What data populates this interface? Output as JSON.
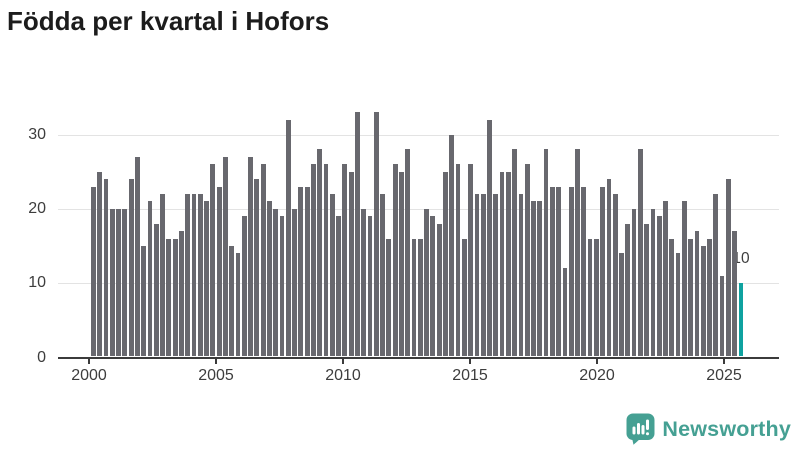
{
  "title": "Födda per kvartal i Hofors",
  "chart_data": {
    "type": "bar",
    "title": "Födda per kvartal i Hofors",
    "x_start": "2000-Q1",
    "frequency": "quarterly",
    "values": [
      23,
      25,
      24,
      20,
      20,
      20,
      24,
      27,
      15,
      21,
      18,
      22,
      16,
      16,
      17,
      22,
      22,
      22,
      21,
      26,
      23,
      27,
      15,
      14,
      19,
      27,
      24,
      26,
      21,
      20,
      19,
      32,
      20,
      23,
      23,
      26,
      28,
      26,
      22,
      19,
      26,
      25,
      33,
      20,
      19,
      33,
      22,
      16,
      26,
      25,
      28,
      16,
      16,
      20,
      19,
      18,
      25,
      30,
      26,
      16,
      26,
      22,
      22,
      32,
      22,
      25,
      25,
      28,
      22,
      26,
      21,
      21,
      28,
      23,
      23,
      12,
      23,
      28,
      23,
      16,
      16,
      23,
      24,
      22,
      14,
      18,
      20,
      28,
      18,
      20,
      19,
      21,
      16,
      14,
      21,
      16,
      17,
      15,
      16,
      22,
      11,
      24,
      17,
      10
    ],
    "highlight": {
      "index": 103,
      "value": 10,
      "label": "10"
    },
    "x_tick_labels": [
      "2000",
      "2005",
      "2010",
      "2015",
      "2020",
      "2025"
    ],
    "x_tick_indices": [
      0,
      20,
      40,
      60,
      80,
      100
    ],
    "y_ticks": [
      0,
      10,
      20,
      30
    ],
    "ylim": [
      0,
      33
    ],
    "grid": true,
    "legend": "none",
    "bar_color": "#68686e",
    "highlight_color": "#0fa2a0"
  },
  "logo": {
    "text": "Newsworthy",
    "color": "#45a093"
  }
}
